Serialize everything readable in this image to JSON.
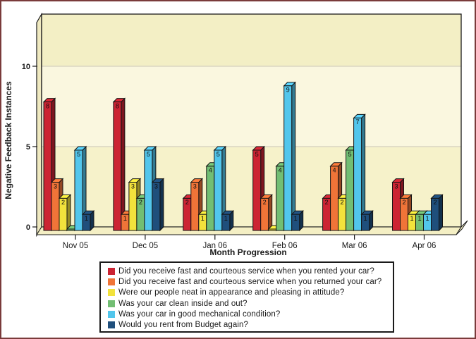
{
  "window": {
    "background": "#ffffff",
    "frame_color": "#7a3b3b"
  },
  "chart_data": {
    "type": "bar",
    "style": "3d-clustered",
    "title": "",
    "xlabel": "Month Progression",
    "ylabel": "Negative Feedback Instances",
    "categories": [
      "Nov 05",
      "Dec 05",
      "Jan 06",
      "Feb 06",
      "Mar 06",
      "Apr 06"
    ],
    "series": [
      {
        "name": "Did you receive fast and courteous service when you rented your car?",
        "color": "#cc2433",
        "values": [
          8,
          8,
          2,
          5,
          2,
          3
        ]
      },
      {
        "name": "Did you receive fast and courteous service when you returned your car?",
        "color": "#f07438",
        "values": [
          3,
          1,
          3,
          2,
          4,
          2
        ]
      },
      {
        "name": "Were our people neat in appearance and pleasing in attitude?",
        "color": "#f2e23c",
        "values": [
          2,
          3,
          1,
          0,
          2,
          1
        ]
      },
      {
        "name": "Was your car clean inside and out?",
        "color": "#72be73",
        "values": [
          0,
          2,
          4,
          4,
          5,
          1
        ]
      },
      {
        "name": "Was your car in good mechanical condition?",
        "color": "#52c6ec",
        "values": [
          5,
          5,
          5,
          9,
          7,
          1
        ]
      },
      {
        "name": "Would you rent from Budget again?",
        "color": "#1f4f7c",
        "values": [
          1,
          3,
          1,
          1,
          1,
          2
        ]
      }
    ],
    "yticks": [
      0,
      5,
      10
    ],
    "ylim": [
      0,
      13.25
    ],
    "grid": true,
    "legend_position": "bottom",
    "value_labels_shown": true,
    "wall_band_colors": [
      "#f6f2ca",
      "#faf7df",
      "#f3efc5"
    ],
    "gridline_color": "#d9d5c2"
  }
}
